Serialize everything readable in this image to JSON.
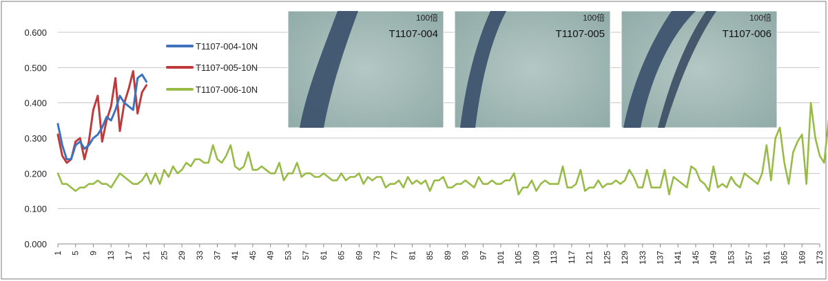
{
  "chart_data": {
    "type": "line",
    "ylim": [
      0,
      0.6
    ],
    "yticks": [
      "0.000",
      "0.100",
      "0.200",
      "0.300",
      "0.400",
      "0.500",
      "0.600"
    ],
    "xlim": [
      1,
      173
    ],
    "xticks": [
      1,
      5,
      9,
      13,
      17,
      21,
      25,
      29,
      33,
      37,
      41,
      45,
      49,
      53,
      57,
      61,
      65,
      69,
      73,
      77,
      81,
      85,
      89,
      93,
      97,
      101,
      105,
      109,
      113,
      117,
      121,
      125,
      129,
      133,
      137,
      141,
      145,
      149,
      153,
      157,
      161,
      165,
      169,
      173
    ],
    "grid": "horizontal",
    "legend_position": "top-left",
    "series": [
      {
        "name": "T1107-004-10N",
        "color": "#3d72bf",
        "x": [
          1,
          2,
          3,
          4,
          5,
          6,
          7,
          8,
          9,
          10,
          11,
          12,
          13,
          14,
          15,
          16,
          17,
          18,
          19,
          20,
          21
        ],
        "values": [
          0.34,
          0.28,
          0.24,
          0.24,
          0.28,
          0.29,
          0.27,
          0.28,
          0.3,
          0.31,
          0.33,
          0.36,
          0.35,
          0.38,
          0.42,
          0.4,
          0.39,
          0.38,
          0.47,
          0.48,
          0.46
        ]
      },
      {
        "name": "T1107-005-10N",
        "color": "#c0393b",
        "x": [
          1,
          2,
          3,
          4,
          5,
          6,
          7,
          8,
          9,
          10,
          11,
          12,
          13,
          14,
          15,
          16,
          17,
          18,
          19,
          20,
          21
        ],
        "values": [
          0.31,
          0.25,
          0.23,
          0.24,
          0.29,
          0.3,
          0.24,
          0.29,
          0.38,
          0.42,
          0.29,
          0.35,
          0.39,
          0.47,
          0.32,
          0.4,
          0.44,
          0.49,
          0.37,
          0.43,
          0.45
        ]
      },
      {
        "name": "T1107-006-10N",
        "color": "#98bb45",
        "x_start": 1,
        "values": [
          0.2,
          0.17,
          0.17,
          0.16,
          0.15,
          0.16,
          0.16,
          0.17,
          0.17,
          0.18,
          0.17,
          0.17,
          0.16,
          0.18,
          0.2,
          0.19,
          0.18,
          0.17,
          0.17,
          0.18,
          0.2,
          0.17,
          0.2,
          0.17,
          0.21,
          0.19,
          0.22,
          0.2,
          0.21,
          0.23,
          0.22,
          0.24,
          0.24,
          0.23,
          0.23,
          0.28,
          0.24,
          0.23,
          0.25,
          0.28,
          0.22,
          0.21,
          0.22,
          0.26,
          0.21,
          0.21,
          0.22,
          0.21,
          0.2,
          0.2,
          0.23,
          0.18,
          0.2,
          0.2,
          0.23,
          0.19,
          0.2,
          0.2,
          0.19,
          0.19,
          0.2,
          0.19,
          0.18,
          0.18,
          0.2,
          0.18,
          0.19,
          0.19,
          0.2,
          0.17,
          0.19,
          0.18,
          0.19,
          0.19,
          0.16,
          0.17,
          0.17,
          0.18,
          0.16,
          0.19,
          0.17,
          0.18,
          0.17,
          0.18,
          0.15,
          0.18,
          0.18,
          0.19,
          0.16,
          0.16,
          0.17,
          0.17,
          0.18,
          0.17,
          0.16,
          0.19,
          0.17,
          0.17,
          0.18,
          0.17,
          0.17,
          0.18,
          0.18,
          0.2,
          0.14,
          0.16,
          0.16,
          0.18,
          0.15,
          0.17,
          0.18,
          0.17,
          0.17,
          0.17,
          0.22,
          0.16,
          0.16,
          0.17,
          0.21,
          0.15,
          0.16,
          0.16,
          0.18,
          0.16,
          0.17,
          0.17,
          0.18,
          0.17,
          0.18,
          0.21,
          0.19,
          0.16,
          0.16,
          0.21,
          0.16,
          0.16,
          0.16,
          0.21,
          0.14,
          0.19,
          0.18,
          0.17,
          0.16,
          0.22,
          0.21,
          0.18,
          0.17,
          0.15,
          0.22,
          0.16,
          0.17,
          0.16,
          0.19,
          0.17,
          0.16,
          0.2,
          0.19,
          0.18,
          0.17,
          0.2,
          0.28,
          0.18,
          0.3,
          0.33,
          0.23,
          0.17,
          0.26,
          0.29,
          0.31,
          0.17,
          0.4,
          0.3,
          0.25,
          0.23,
          0.35
        ]
      }
    ]
  },
  "photos": [
    {
      "magnification": "100倍",
      "label": "T1107-004"
    },
    {
      "magnification": "100倍",
      "label": "T1107-005"
    },
    {
      "magnification": "100倍",
      "label": "T1107-006"
    }
  ]
}
